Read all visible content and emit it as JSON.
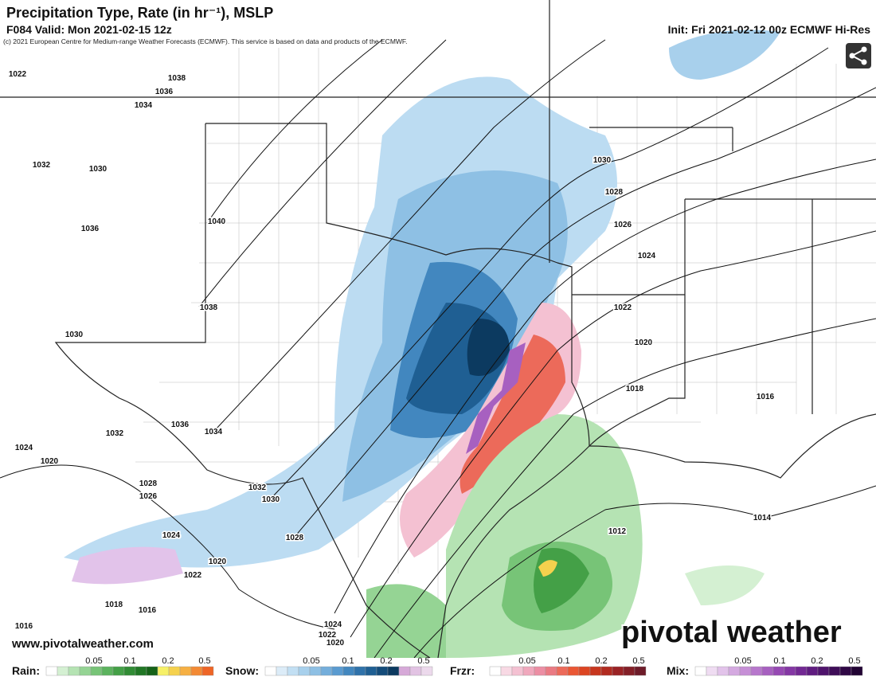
{
  "header": {
    "title": "Precipitation Type, Rate (in hr⁻¹), MSLP",
    "valid": "F084 Valid: Mon 2021-02-15 12z",
    "init": "Init: Fri 2021-02-12 00z ECMWF Hi-Res",
    "copyright": "(c) 2021 European Centre for Medium-range Weather Forecasts (ECMWF). This service is based on data and products of the ECMWF."
  },
  "isobars": [
    "1022",
    "1038",
    "1036",
    "1034",
    "1032",
    "1030",
    "1040",
    "1036",
    "1038",
    "1030",
    "1036",
    "1034",
    "1032",
    "1024",
    "1020",
    "1028",
    "1026",
    "1032",
    "1030",
    "1028",
    "1024",
    "1020",
    "1022",
    "1018",
    "1016",
    "1016",
    "1024",
    "1022",
    "1020",
    "1030",
    "1028",
    "1026",
    "1024",
    "1022",
    "1020",
    "1018",
    "1016",
    "1014",
    "1012"
  ],
  "footer": {
    "website": "www.pivotalweather.com",
    "logo": "pivotal weather"
  },
  "legend": [
    {
      "label": "Rain:",
      "ticks": [
        "0.05",
        "0.1",
        "0.2",
        "0.5"
      ],
      "colors": [
        "#ffffff",
        "#d4f0d2",
        "#b5e3b3",
        "#95d494",
        "#77c477",
        "#5cb35e",
        "#44a047",
        "#318c35",
        "#217725",
        "#156218",
        "#f6f067",
        "#f5d14e",
        "#f6b043",
        "#f38a34",
        "#ee6526"
      ]
    },
    {
      "label": "Snow:",
      "ticks": [
        "0.05",
        "0.1",
        "0.2",
        "0.5"
      ],
      "colors": [
        "#ffffff",
        "#dcecf8",
        "#c2dff3",
        "#a8d0ec",
        "#8ec0e4",
        "#74aedb",
        "#5a9bd0",
        "#4287bf",
        "#2f72aa",
        "#1f5f93",
        "#144c7a",
        "#0c3a60",
        "#d6a9d8",
        "#e2c3e3",
        "#ecd9ec"
      ]
    },
    {
      "label": "Frzr:",
      "ticks": [
        "0.05",
        "0.1",
        "0.2",
        "0.5"
      ],
      "colors": [
        "#ffffff",
        "#f8d9e4",
        "#f4c1d2",
        "#f0a8bd",
        "#ec8ea4",
        "#ea7a83",
        "#ec6a5a",
        "#ea5734",
        "#dc4522",
        "#c7361e",
        "#b12b20",
        "#9a2325",
        "#842028",
        "#6e1c2a"
      ]
    },
    {
      "label": "Mix:",
      "ticks": [
        "0.05",
        "0.1",
        "0.2",
        "0.5"
      ],
      "colors": [
        "#ffffff",
        "#efdcf2",
        "#e2c3ea",
        "#d4a9e0",
        "#c68fd6",
        "#b777cc",
        "#a760c0",
        "#9649b3",
        "#8437a4",
        "#722893",
        "#601c80",
        "#4f136c",
        "#3f0d58",
        "#300845",
        "#220434"
      ]
    }
  ]
}
